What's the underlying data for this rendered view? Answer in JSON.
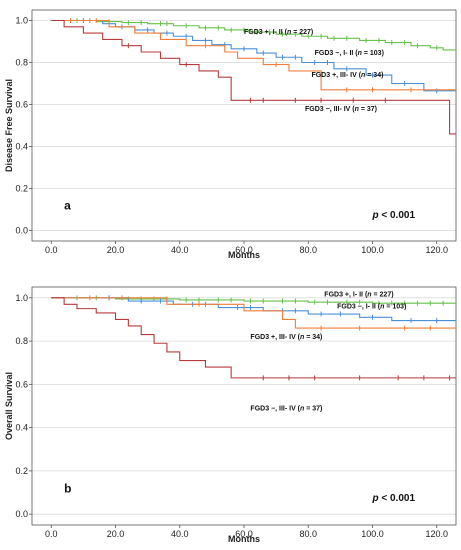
{
  "chart_data": [
    {
      "type": "line",
      "panel_letter": "a",
      "ylabel": "Disease Free Survival",
      "xlabel": "Months",
      "xlim": [
        -6,
        126
      ],
      "ylim": [
        -0.05,
        1.05
      ],
      "xticks": [
        "0.0",
        "20.0",
        "40.0",
        "60.0",
        "80.0",
        "100.0",
        "120.0"
      ],
      "xtick_values": [
        0,
        20,
        40,
        60,
        80,
        100,
        120
      ],
      "yticks": [
        "0.0",
        "0.2",
        "0.4",
        "0.6",
        "0.8",
        "1.0"
      ],
      "ytick_values": [
        0,
        0.2,
        0.4,
        0.6,
        0.8,
        1.0
      ],
      "grid": "horizontal",
      "pvalue_prefix": "p",
      "pvalue_rest": " < 0.001",
      "series": [
        {
          "name": "FGD3 +, I- II (n = 227)",
          "label_parts": [
            "FGD3 +, I- II (",
            "n",
            " = 227)"
          ],
          "label_x": 60,
          "label_y": 0.935,
          "color": "#66c24a",
          "x": [
            0,
            6,
            14,
            22,
            30,
            38,
            46,
            54,
            62,
            70,
            78,
            86,
            96,
            104,
            112,
            118,
            122,
            126
          ],
          "y": [
            1.0,
            1.0,
            0.995,
            0.99,
            0.985,
            0.975,
            0.965,
            0.955,
            0.945,
            0.935,
            0.925,
            0.915,
            0.905,
            0.895,
            0.88,
            0.87,
            0.86,
            0.86
          ],
          "censor_x": [
            8,
            12,
            18,
            24,
            28,
            34,
            36,
            42,
            48,
            52,
            56,
            60,
            64,
            68,
            72,
            76,
            80,
            84,
            88,
            92,
            98,
            102,
            106,
            110,
            114,
            120
          ]
        },
        {
          "name": "FGD3 −, I- II (n = 103)",
          "label_parts": [
            "FGD3 −, I- II (",
            "n",
            " = 103)"
          ],
          "label_x": 82,
          "label_y": 0.835,
          "color": "#4a90d9",
          "x": [
            0,
            8,
            16,
            20,
            26,
            32,
            38,
            44,
            50,
            56,
            64,
            70,
            78,
            88,
            98,
            106,
            116,
            126
          ],
          "y": [
            1.0,
            1.0,
            0.985,
            0.97,
            0.955,
            0.94,
            0.925,
            0.905,
            0.885,
            0.865,
            0.845,
            0.825,
            0.8,
            0.77,
            0.74,
            0.7,
            0.665,
            0.665
          ],
          "censor_x": [
            10,
            22,
            30,
            36,
            42,
            48,
            54,
            60,
            66,
            72,
            76,
            82,
            86,
            92,
            100,
            110,
            120
          ]
        },
        {
          "name": "FGD3 +, III- IV (n = 34)",
          "label_parts": [
            "FGD3 +, III- IV (",
            "n",
            " = 34)"
          ],
          "label_x": 81,
          "label_y": 0.73,
          "color": "#f07e3c",
          "x": [
            0,
            10,
            18,
            26,
            34,
            42,
            54,
            58,
            66,
            74,
            84,
            126
          ],
          "y": [
            1.0,
            1.0,
            0.97,
            0.94,
            0.91,
            0.88,
            0.85,
            0.82,
            0.79,
            0.76,
            0.67,
            0.67
          ],
          "censor_x": [
            6,
            14,
            48,
            70,
            92,
            100,
            112
          ]
        },
        {
          "name": "FGD3 −, III- IV (n = 37)",
          "label_parts": [
            "FGD3 −, III- IV (",
            "n",
            " = 37)"
          ],
          "label_x": 79,
          "label_y": 0.57,
          "color": "#b83b3b",
          "x": [
            0,
            4,
            10,
            16,
            22,
            28,
            34,
            40,
            46,
            52,
            56,
            70,
            124,
            126
          ],
          "y": [
            1.0,
            0.97,
            0.94,
            0.91,
            0.88,
            0.85,
            0.82,
            0.79,
            0.76,
            0.73,
            0.62,
            0.62,
            0.46,
            0.46
          ],
          "censor_x": [
            24,
            42,
            62,
            66,
            76,
            84,
            94,
            104
          ]
        }
      ]
    },
    {
      "type": "line",
      "panel_letter": "b",
      "ylabel": "Overall Survival",
      "xlabel": "Months",
      "xlim": [
        -6,
        126
      ],
      "ylim": [
        -0.05,
        1.05
      ],
      "xticks": [
        "0.0",
        "20.0",
        "40.0",
        "60.0",
        "80.0",
        "100.0",
        "120.0"
      ],
      "xtick_values": [
        0,
        20,
        40,
        60,
        80,
        100,
        120
      ],
      "yticks": [
        "0.0",
        "0.2",
        "0.4",
        "0.6",
        "0.8",
        "1.0"
      ],
      "ytick_values": [
        0,
        0.2,
        0.4,
        0.6,
        0.8,
        1.0
      ],
      "grid": "horizontal",
      "pvalue_prefix": "p",
      "pvalue_rest": " < 0.001",
      "series": [
        {
          "name": "FGD3 +, I- II (n = 227)",
          "label_parts": [
            "FGD3 +, I- II (",
            "n",
            " = 227)"
          ],
          "label_x": 85,
          "label_y": 1.005,
          "color": "#66c24a",
          "x": [
            0,
            10,
            20,
            30,
            40,
            50,
            60,
            70,
            80,
            90,
            100,
            126
          ],
          "y": [
            1.0,
            1.0,
            0.995,
            0.995,
            0.99,
            0.99,
            0.985,
            0.985,
            0.98,
            0.98,
            0.975,
            0.975
          ],
          "censor_x": [
            8,
            14,
            18,
            24,
            28,
            32,
            36,
            42,
            46,
            52,
            56,
            62,
            66,
            72,
            76,
            82,
            86,
            92,
            96,
            102,
            106,
            110,
            114,
            118,
            122
          ]
        },
        {
          "name": "FGD3 −, I- II (n = 103)",
          "label_parts": [
            "FGD3 −, I- II (",
            "n",
            " = 103)"
          ],
          "label_x": 89,
          "label_y": 0.95,
          "color": "#4a90d9",
          "x": [
            0,
            14,
            24,
            38,
            52,
            66,
            80,
            96,
            106,
            126
          ],
          "y": [
            1.0,
            1.0,
            0.985,
            0.97,
            0.955,
            0.94,
            0.925,
            0.91,
            0.895,
            0.895
          ],
          "censor_x": [
            18,
            28,
            34,
            44,
            48,
            58,
            62,
            72,
            76,
            84,
            90,
            100,
            112,
            120
          ]
        },
        {
          "name": "FGD3 +, III- IV (n = 34)",
          "label_parts": [
            "FGD3 +, III- IV (",
            "n",
            " = 34)"
          ],
          "label_x": 62,
          "label_y": 0.81,
          "color": "#f07e3c",
          "x": [
            0,
            28,
            36,
            60,
            72,
            76,
            126
          ],
          "y": [
            1.0,
            1.0,
            0.97,
            0.94,
            0.9,
            0.86,
            0.86
          ],
          "censor_x": [
            12,
            22,
            46,
            84,
            96,
            110,
            118
          ]
        },
        {
          "name": "FGD3 −, III- IV (n = 37)",
          "label_parts": [
            "FGD3 −, III- IV (",
            "n",
            " = 37)"
          ],
          "label_x": 62,
          "label_y": 0.48,
          "color": "#b83b3b",
          "x": [
            0,
            4,
            8,
            14,
            20,
            24,
            28,
            32,
            36,
            40,
            48,
            56,
            126
          ],
          "y": [
            1.0,
            0.97,
            0.95,
            0.93,
            0.9,
            0.87,
            0.83,
            0.79,
            0.75,
            0.71,
            0.68,
            0.63,
            0.63
          ],
          "censor_x": [
            66,
            74,
            82,
            96,
            108,
            116,
            124
          ]
        }
      ]
    }
  ]
}
